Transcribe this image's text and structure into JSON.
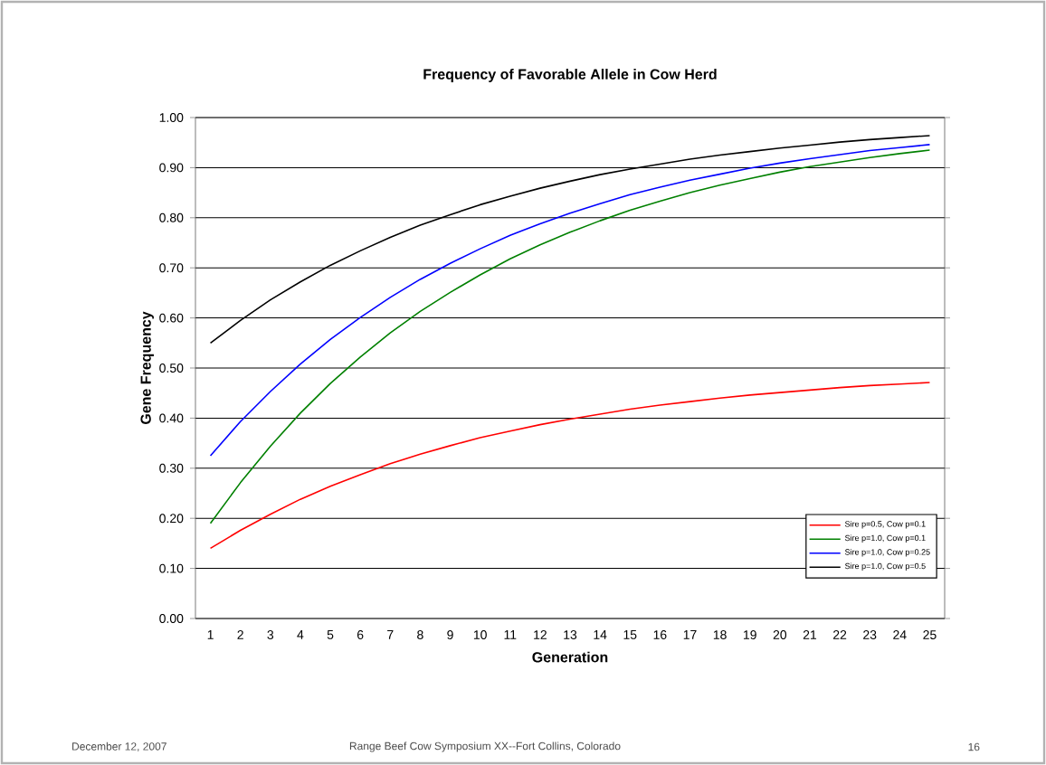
{
  "chart_data": {
    "type": "line",
    "title": "Frequency of Favorable Allele in Cow Herd",
    "xlabel": "Generation",
    "ylabel": "Gene Frequency",
    "categories": [
      "1",
      "2",
      "3",
      "4",
      "5",
      "6",
      "7",
      "8",
      "9",
      "10",
      "11",
      "12",
      "13",
      "14",
      "15",
      "16",
      "17",
      "18",
      "19",
      "20",
      "21",
      "22",
      "23",
      "24",
      "25"
    ],
    "series": [
      {
        "name": "Sire p=0.5, Cow p=0.1",
        "color": "#ff0000",
        "values": [
          0.14,
          0.176,
          0.208,
          0.238,
          0.264,
          0.287,
          0.309,
          0.328,
          0.345,
          0.361,
          0.374,
          0.387,
          0.398,
          0.408,
          0.418,
          0.426,
          0.433,
          0.44,
          0.446,
          0.451,
          0.456,
          0.461,
          0.465,
          0.468,
          0.471
        ]
      },
      {
        "name": "Sire p=1.0, Cow p=0.1",
        "color": "#008000",
        "values": [
          0.19,
          0.271,
          0.344,
          0.41,
          0.469,
          0.522,
          0.57,
          0.613,
          0.651,
          0.686,
          0.718,
          0.746,
          0.771,
          0.794,
          0.815,
          0.833,
          0.85,
          0.865,
          0.878,
          0.891,
          0.902,
          0.911,
          0.92,
          0.928,
          0.935
        ]
      },
      {
        "name": "Sire p=1.0, Cow p=0.25",
        "color": "#0000ff",
        "values": [
          0.325,
          0.393,
          0.453,
          0.508,
          0.557,
          0.601,
          0.641,
          0.677,
          0.709,
          0.738,
          0.765,
          0.788,
          0.809,
          0.828,
          0.846,
          0.861,
          0.875,
          0.887,
          0.899,
          0.909,
          0.918,
          0.926,
          0.934,
          0.94,
          0.946
        ]
      },
      {
        "name": "Sire p=1.0, Cow p=0.5",
        "color": "#000000",
        "values": [
          0.55,
          0.595,
          0.636,
          0.672,
          0.705,
          0.734,
          0.761,
          0.785,
          0.806,
          0.826,
          0.843,
          0.859,
          0.873,
          0.886,
          0.897,
          0.907,
          0.917,
          0.925,
          0.932,
          0.939,
          0.945,
          0.951,
          0.956,
          0.96,
          0.964
        ]
      }
    ],
    "ylim": [
      0,
      1
    ],
    "yticks": [
      {
        "value": 0,
        "label": "0.00"
      },
      {
        "value": 0.1,
        "label": "0.10"
      },
      {
        "value": 0.2,
        "label": "0.20"
      },
      {
        "value": 0.3,
        "label": "0.30"
      },
      {
        "value": 0.4,
        "label": "0.40"
      },
      {
        "value": 0.5,
        "label": "0.50"
      },
      {
        "value": 0.6,
        "label": "0.60"
      },
      {
        "value": 0.7,
        "label": "0.70"
      },
      {
        "value": 0.8,
        "label": "0.80"
      },
      {
        "value": 0.9,
        "label": "0.90"
      },
      {
        "value": 1,
        "label": "1.00"
      }
    ],
    "grid": "y",
    "legend": "bottom right",
    "marker": "none",
    "line_style": "solid",
    "annotations": [
      "December 12, 2007",
      "Range Beef Cow Symposium XX--Fort Collins, Colorado",
      "16"
    ]
  }
}
